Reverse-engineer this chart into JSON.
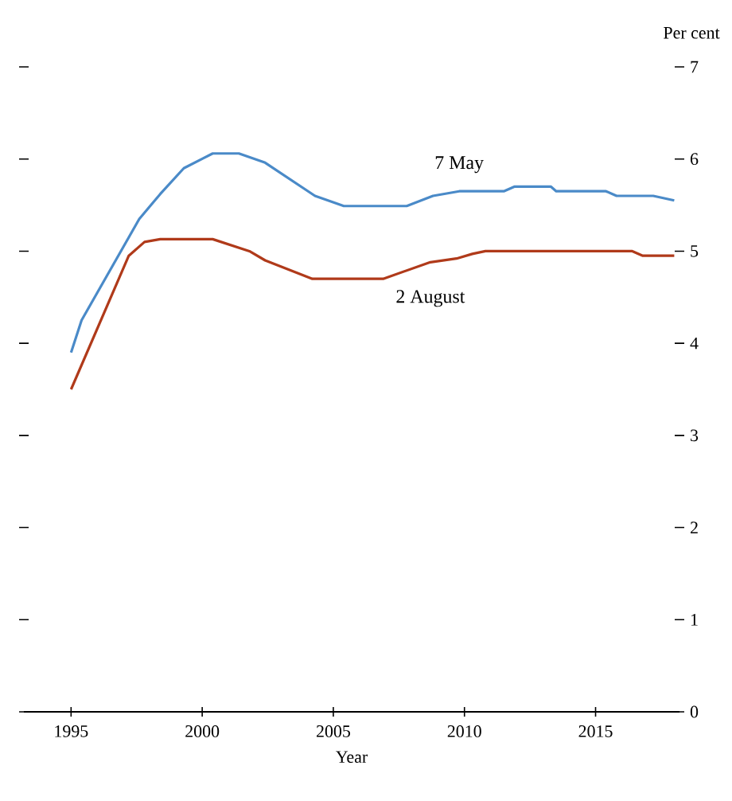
{
  "chart_data": {
    "type": "line",
    "xlabel": "Year",
    "ylabel": "Per cent",
    "xlim": [
      1993.2,
      2018.2
    ],
    "ylim": [
      0,
      7
    ],
    "xticks": [
      1995,
      2000,
      2005,
      2010,
      2015
    ],
    "yticks": [
      0,
      1,
      2,
      3,
      4,
      5,
      6,
      7
    ],
    "grid": false,
    "legend": false,
    "line_style": "solid",
    "marker": "none",
    "series": [
      {
        "name": "7 May",
        "color": "#4a8ac8",
        "x": [
          1995,
          1995.4,
          1997.6,
          1998.4,
          1999.3,
          2000.4,
          2001.4,
          2002.4,
          2004.3,
          2005.4,
          2007.8,
          2008.8,
          2009.8,
          2011.5,
          2011.9,
          2013.3,
          2013.5,
          2015.4,
          2015.8,
          2017.2,
          2018
        ],
        "values": [
          3.9,
          4.25,
          5.35,
          5.62,
          5.9,
          6.06,
          6.06,
          5.96,
          5.6,
          5.49,
          5.49,
          5.6,
          5.65,
          5.65,
          5.7,
          5.7,
          5.65,
          5.65,
          5.6,
          5.6,
          5.55
        ]
      },
      {
        "name": "2 August",
        "color": "#b03a1a",
        "x": [
          1995,
          1997.2,
          1997.8,
          1998.4,
          2000.4,
          2001.8,
          2002.4,
          2004.2,
          2006.9,
          2008.7,
          2009.7,
          2010.3,
          2010.8,
          2016.4,
          2016.8,
          2018
        ],
        "values": [
          3.5,
          4.95,
          5.1,
          5.13,
          5.13,
          5.0,
          4.9,
          4.7,
          4.7,
          4.88,
          4.92,
          4.97,
          5.0,
          5.0,
          4.95,
          4.95
        ]
      }
    ]
  }
}
